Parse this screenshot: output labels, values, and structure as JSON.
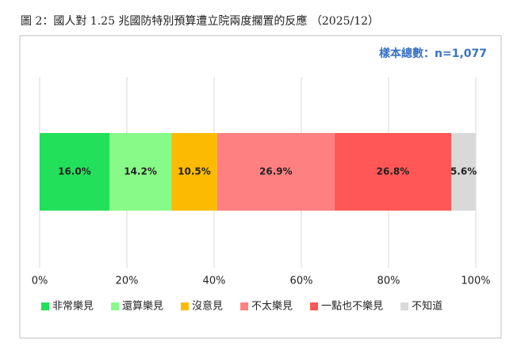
{
  "chart_data": {
    "type": "stacked-bar-horizontal",
    "title": "圖 2：國人對 1.25 兆國防特別預算遭立院兩度擱置的反應 （2025/12）",
    "subtitle": "樣本總數：n=1,077",
    "categories": [
      null
    ],
    "series": [
      {
        "name": "非常樂見",
        "color": "#22e05a",
        "values": [
          16.0
        ],
        "value_labels": [
          "16.0%"
        ]
      },
      {
        "name": "還算樂見",
        "color": "#88fa88",
        "values": [
          14.2
        ],
        "value_labels": [
          "14.2%"
        ]
      },
      {
        "name": "沒意見",
        "color": "#fcbb00",
        "values": [
          10.5
        ],
        "value_labels": [
          "10.5%"
        ]
      },
      {
        "name": "不太樂見",
        "color": "#ff8080",
        "values": [
          26.9
        ],
        "value_labels": [
          "26.9%"
        ]
      },
      {
        "name": "一點也不樂見",
        "color": "#ff5757",
        "values": [
          26.8
        ],
        "value_labels": [
          "26.8%"
        ]
      },
      {
        "name": "不知道",
        "color": "#d9d9d9",
        "values": [
          5.6
        ],
        "value_labels": [
          "5.6%"
        ]
      }
    ],
    "xlim": [
      0,
      100
    ],
    "xticks": [
      {
        "value": 0,
        "label": "0%"
      },
      {
        "value": 20,
        "label": "20%"
      },
      {
        "value": 40,
        "label": "40%"
      },
      {
        "value": 60,
        "label": "60%"
      },
      {
        "value": 80,
        "label": "80%"
      },
      {
        "value": 100,
        "label": "100%"
      }
    ],
    "grid": true,
    "legend": "bottom"
  }
}
